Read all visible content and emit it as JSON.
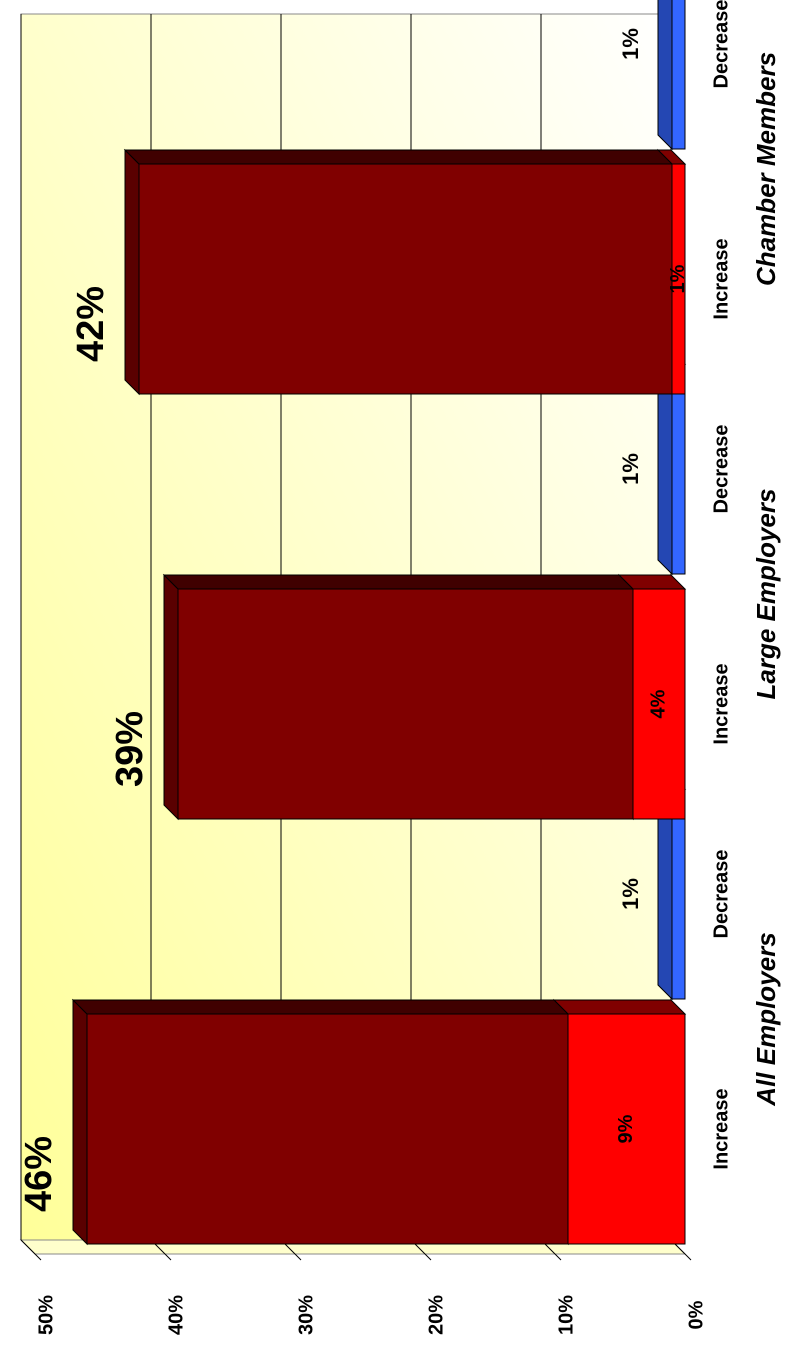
{
  "chart_data": {
    "type": "bar",
    "groups": [
      "All Employers",
      "Large Employers",
      "Chamber Members"
    ],
    "bar_labels": [
      "Increase",
      "Decrease"
    ],
    "increase_light": {
      "color": "#ff0000",
      "values": [
        9,
        4,
        1
      ],
      "value_labels": [
        "9%",
        "4%",
        "1%"
      ]
    },
    "increase_dark": {
      "color": "#800000",
      "values": [
        37,
        35,
        41
      ]
    },
    "totals": {
      "values": [
        46,
        39,
        42
      ],
      "value_labels": [
        "46%",
        "39%",
        "42%"
      ]
    },
    "decrease": {
      "color": "#3366ff",
      "values": [
        1,
        1,
        1
      ],
      "value_labels": [
        "1%",
        "1%",
        "1%"
      ]
    },
    "ylim": [
      0,
      50
    ],
    "yticks": [
      {
        "value": 0,
        "label": "0%"
      },
      {
        "value": 10,
        "label": "10%"
      },
      {
        "value": 20,
        "label": "20%"
      },
      {
        "value": 30,
        "label": "30%"
      },
      {
        "value": 40,
        "label": "40%"
      },
      {
        "value": 50,
        "label": "50%"
      }
    ],
    "grid": true
  }
}
